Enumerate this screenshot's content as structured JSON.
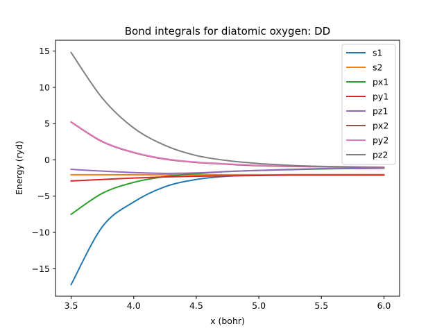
{
  "chart_data": {
    "type": "line",
    "title": "Bond integrals for diatomic oxygen: DD",
    "xlabel": "x (bohr)",
    "ylabel": "Energy (ryd)",
    "xlim": [
      3.375,
      6.125
    ],
    "ylim": [
      -18.8,
      16.5
    ],
    "xticks": [
      3.5,
      4.0,
      4.5,
      5.0,
      5.5,
      6.0
    ],
    "yticks": [
      -15,
      -10,
      -5,
      0,
      5,
      10,
      15
    ],
    "grid": false,
    "legend_position": "top-right",
    "x": [
      3.5,
      3.75,
      4.0,
      4.25,
      4.5,
      4.75,
      5.0,
      5.25,
      5.5,
      5.75,
      6.0
    ],
    "series": [
      {
        "name": "s1",
        "color": "#1f77b4",
        "values": [
          -17.2,
          -9.2,
          -5.8,
          -3.7,
          -2.7,
          -2.25,
          -2.1,
          -2.05,
          -2.05,
          -2.05,
          -2.05
        ]
      },
      {
        "name": "s2",
        "color": "#ff7f0e",
        "values": [
          -2.05,
          -2.05,
          -2.05,
          -2.05,
          -2.05,
          -2.05,
          -2.05,
          -2.05,
          -2.05,
          -2.05,
          -2.05
        ]
      },
      {
        "name": "px1",
        "color": "#2ca02c",
        "values": [
          -7.5,
          -4.6,
          -3.1,
          -2.3,
          -1.9,
          -1.6,
          -1.45,
          -1.35,
          -1.25,
          -1.2,
          -1.15
        ]
      },
      {
        "name": "py1",
        "color": "#d62728",
        "values": [
          -2.9,
          -2.7,
          -2.5,
          -2.35,
          -2.25,
          -2.2,
          -2.15,
          -2.1,
          -2.1,
          -2.1,
          -2.1
        ]
      },
      {
        "name": "pz1",
        "color": "#9467bd",
        "values": [
          -1.3,
          -1.55,
          -1.75,
          -1.85,
          -1.8,
          -1.6,
          -1.45,
          -1.3,
          -1.2,
          -1.15,
          -1.1
        ]
      },
      {
        "name": "px2",
        "color": "#8c564b",
        "values": [
          5.2,
          2.5,
          1.0,
          0.1,
          -0.35,
          -0.6,
          -0.8,
          -0.9,
          -0.95,
          -1.0,
          -1.05
        ]
      },
      {
        "name": "py2",
        "color": "#e377c2",
        "values": [
          5.25,
          2.55,
          1.05,
          0.15,
          -0.3,
          -0.55,
          -0.75,
          -0.85,
          -0.9,
          -0.95,
          -1.0
        ]
      },
      {
        "name": "pz2",
        "color": "#7f7f7f",
        "values": [
          14.8,
          8.5,
          4.4,
          2.0,
          0.6,
          -0.1,
          -0.5,
          -0.75,
          -0.9,
          -1.0,
          -1.05
        ]
      }
    ]
  }
}
